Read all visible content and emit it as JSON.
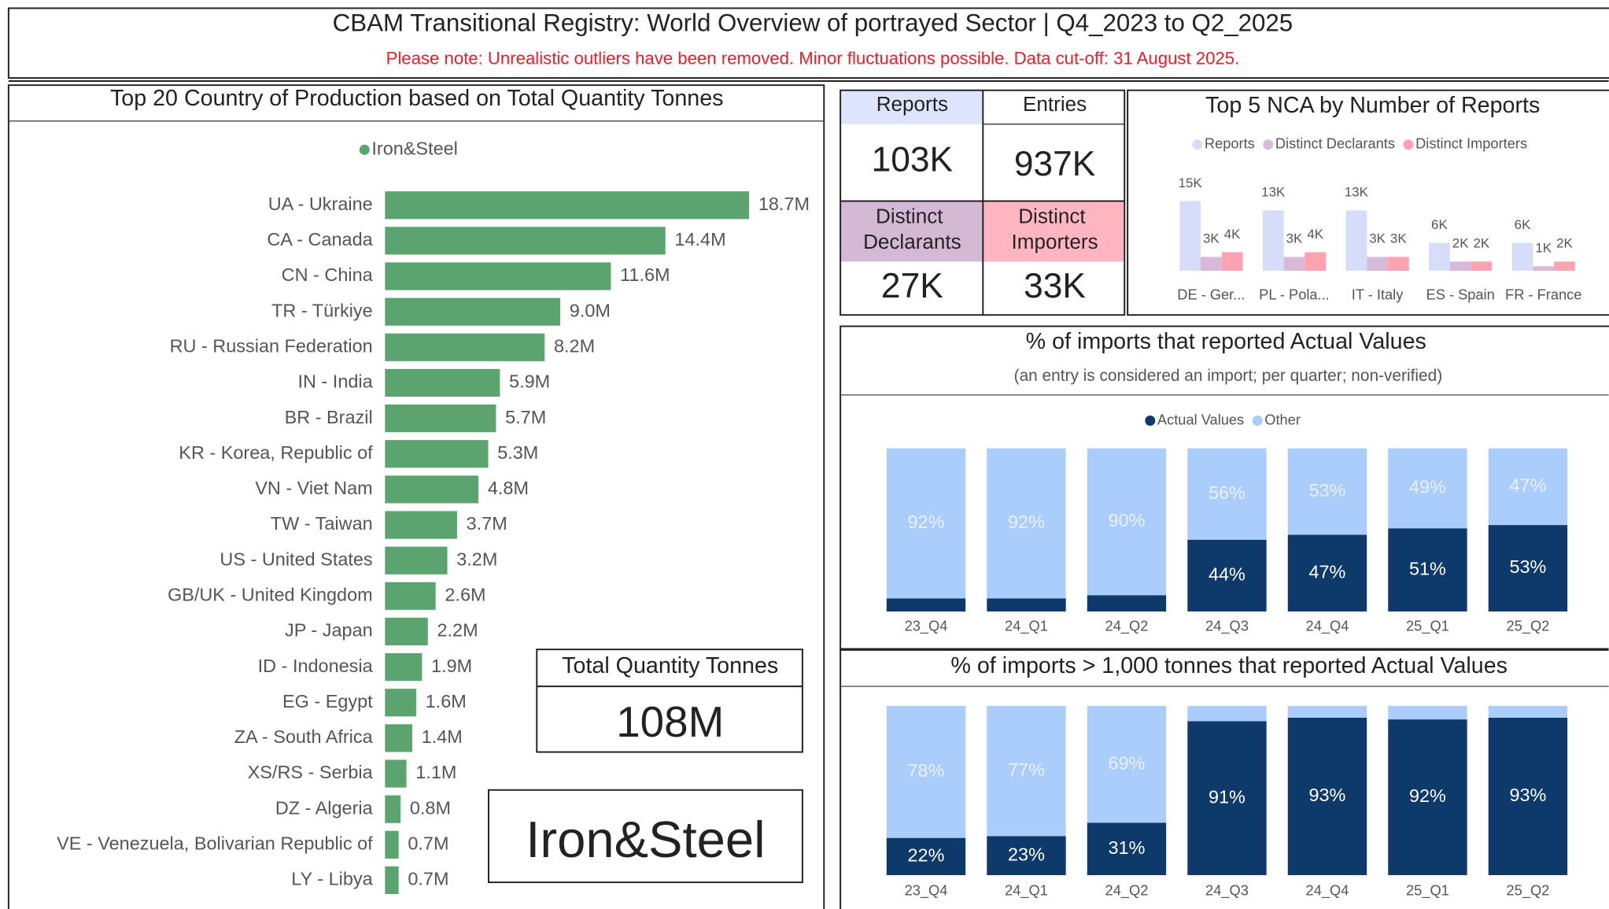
{
  "header": {
    "title": "CBAM Transitional Registry: World Overview of portrayed Sector | Q4_2023 to Q2_2025",
    "note": "Please note: Unrealistic outliers have been removed. Minor fluctuations possible. Data cut-off: 31 August 2025."
  },
  "kpis": [
    {
      "label": "Reports",
      "value": "103K"
    },
    {
      "label": "Entries",
      "value": "937K"
    },
    {
      "label": "Distinct Declarants",
      "value": "27K"
    },
    {
      "label": "Distinct Importers",
      "value": "33K"
    }
  ],
  "summary": {
    "label": "Total Quantity Tonnes",
    "value": "108M"
  },
  "sector": "Iron&Steel",
  "chart_data": [
    {
      "type": "hbar",
      "title": "Top 20 Country of Production based on Total Quantity Tonnes",
      "categories": [
        "UA - Ukraine",
        "CA - Canada",
        "CN - China",
        "TR - Türkiye",
        "RU - Russian Federation",
        "IN - India",
        "BR - Brazil",
        "KR - Korea, Republic of",
        "VN - Viet Nam",
        "TW - Taiwan",
        "US - United States",
        "GB/UK - United Kingdom",
        "JP - Japan",
        "ID - Indonesia",
        "EG - Egypt",
        "ZA - South Africa",
        "XS/RS - Serbia",
        "DZ - Algeria",
        "VE - Venezuela, Bolivarian Republic of",
        "LY - Libya"
      ],
      "series": [
        {
          "name": "Iron&Steel",
          "color": "#5ba36f",
          "values": [
            18700000,
            14400000,
            11600000,
            9000000,
            8200000,
            5900000,
            5700000,
            5300000,
            4800000,
            3700000,
            3200000,
            2600000,
            2200000,
            1900000,
            1600000,
            1400000,
            1100000,
            800000,
            700000,
            700000
          ],
          "value_labels": [
            "18.7M",
            "14.4M",
            "11.6M",
            "9.0M",
            "8.2M",
            "5.9M",
            "5.7M",
            "5.3M",
            "4.8M",
            "3.7M",
            "3.2M",
            "2.6M",
            "2.2M",
            "1.9M",
            "1.6M",
            "1.4M",
            "1.1M",
            "0.8M",
            "0.7M",
            "0.7M"
          ]
        }
      ]
    },
    {
      "type": "grouped_bar",
      "title": "Top 5 NCA by Number of Reports",
      "categories": [
        "DE - Ger...",
        "PL - Pola...",
        "IT - Italy",
        "ES - Spain",
        "FR - France"
      ],
      "series": [
        {
          "name": "Reports",
          "color": "#d6ddf8",
          "values": [
            15000,
            13000,
            13000,
            6000,
            6000
          ],
          "value_labels": [
            "15K",
            "13K",
            "13K",
            "6K",
            "6K"
          ]
        },
        {
          "name": "Distinct Declarants",
          "color": "#d7b9d8",
          "values": [
            3000,
            3000,
            3000,
            2000,
            1000
          ],
          "value_labels": [
            "3K",
            "3K",
            "3K",
            "2K",
            "1K"
          ]
        },
        {
          "name": "Distinct Importers",
          "color": "#ffa3b2",
          "values": [
            4000,
            4000,
            3000,
            2000,
            2000
          ],
          "value_labels": [
            "4K",
            "4K",
            "3K",
            "2K",
            "2K"
          ]
        }
      ]
    },
    {
      "type": "stacked_percent",
      "title": "% of imports that reported Actual Values",
      "subtitle": "(an entry is considered an import; per quarter; non-verified)",
      "categories": [
        "23_Q4",
        "24_Q1",
        "24_Q2",
        "24_Q3",
        "24_Q4",
        "25_Q1",
        "25_Q2"
      ],
      "series": [
        {
          "name": "Actual Values",
          "color": "#0e3a6b",
          "values": [
            8,
            8,
            10,
            44,
            47,
            51,
            53
          ],
          "value_labels": [
            null,
            null,
            null,
            "44%",
            "47%",
            "51%",
            "53%"
          ]
        },
        {
          "name": "Other",
          "color": "#abcdfb",
          "values": [
            92,
            92,
            90,
            56,
            53,
            49,
            47
          ],
          "value_labels": [
            "92%",
            "92%",
            "90%",
            "56%",
            "53%",
            "49%",
            "47%"
          ]
        }
      ]
    },
    {
      "type": "stacked_percent",
      "title": "% of imports > 1,000 tonnes that reported Actual Values",
      "categories": [
        "23_Q4",
        "24_Q1",
        "24_Q2",
        "24_Q3",
        "24_Q4",
        "25_Q1",
        "25_Q2"
      ],
      "series": [
        {
          "name": "Actual Values",
          "color": "#0e3a6b",
          "values": [
            22,
            23,
            31,
            91,
            93,
            92,
            93
          ],
          "value_labels": [
            "22%",
            "23%",
            "31%",
            "91%",
            "93%",
            "92%",
            "93%"
          ]
        },
        {
          "name": "Other",
          "color": "#abcdfb",
          "values": [
            78,
            77,
            69,
            9,
            7,
            8,
            7
          ],
          "value_labels": [
            "78%",
            "77%",
            "69%",
            null,
            null,
            null,
            null
          ]
        }
      ]
    }
  ]
}
